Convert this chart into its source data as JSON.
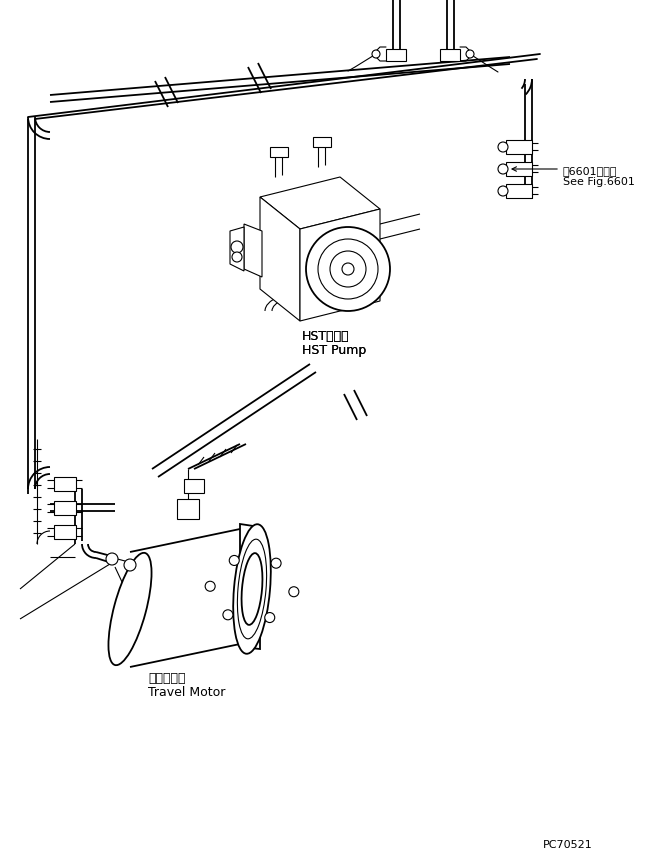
{
  "bg_color": "#ffffff",
  "lc": "#000000",
  "lw": 0.8,
  "lw2": 1.3,
  "lw3": 1.8,
  "label_hst_jp": "HSTポンプ",
  "label_hst_en": "HST Pump",
  "label_motor_jp": "走行モータ",
  "label_motor_en": "Travel Motor",
  "label_fig_jp": "第6601図参照",
  "label_fig_en": "See Fig.6601",
  "part_id": "PC70521"
}
